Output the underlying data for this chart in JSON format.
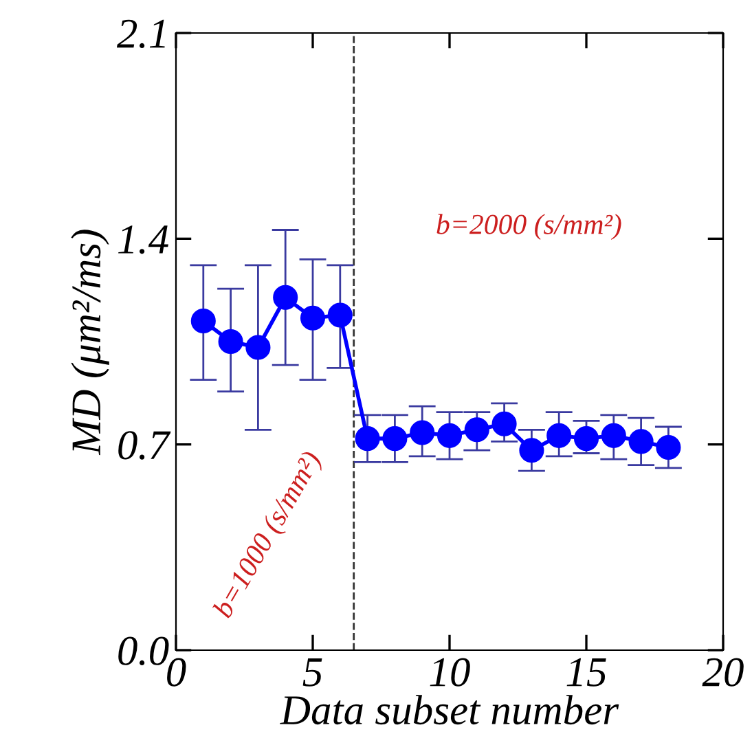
{
  "chart_data": {
    "type": "line",
    "xlabel": "Data subset number",
    "ylabel": "MD (μm²/ms)",
    "x": [
      1,
      2,
      3,
      4,
      5,
      6,
      7,
      8,
      9,
      10,
      11,
      12,
      13,
      14,
      15,
      16,
      17,
      18
    ],
    "series": [
      {
        "color": "#0000ff",
        "values": [
          1.12,
          1.05,
          1.03,
          1.2,
          1.13,
          1.14,
          0.72,
          0.72,
          0.74,
          0.73,
          0.75,
          0.77,
          0.68,
          0.73,
          0.72,
          0.73,
          0.71,
          0.69
        ],
        "errors": [
          [
            0.92,
            1.31
          ],
          [
            0.88,
            1.23
          ],
          [
            0.75,
            1.31
          ],
          [
            0.97,
            1.43
          ],
          [
            0.92,
            1.33
          ],
          [
            0.96,
            1.31
          ],
          [
            0.64,
            0.8
          ],
          [
            0.64,
            0.8
          ],
          [
            0.66,
            0.83
          ],
          [
            0.65,
            0.81
          ],
          [
            0.68,
            0.81
          ],
          [
            0.71,
            0.84
          ],
          [
            0.61,
            0.75
          ],
          [
            0.66,
            0.81
          ],
          [
            0.67,
            0.78
          ],
          [
            0.65,
            0.8
          ],
          [
            0.63,
            0.79
          ],
          [
            0.62,
            0.76
          ]
        ]
      }
    ],
    "marker": "circle",
    "line_style": "solid",
    "grid": false,
    "legend": false,
    "xlim": [
      0,
      20
    ],
    "xticks": [
      0,
      5,
      10,
      15,
      20
    ],
    "ylim": [
      0,
      2.1
    ],
    "yticks": [
      {
        "value": 0,
        "label": "0.0"
      },
      0.7,
      1.4,
      2.1
    ],
    "ref_lines": [
      {
        "axis": "x",
        "value": 6.5,
        "line_style": "dashed",
        "color": "#333333"
      }
    ],
    "annotations": [
      "b=2000 (s/mm²)",
      "b=1000 (s/mm²)"
    ]
  }
}
